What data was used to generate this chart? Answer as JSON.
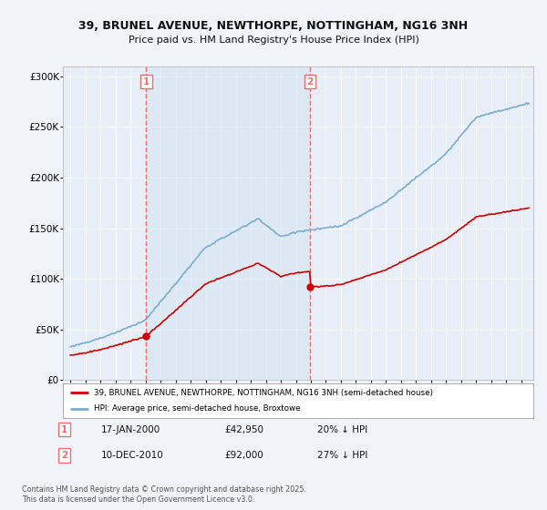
{
  "title_line1": "39, BRUNEL AVENUE, NEWTHORPE, NOTTINGHAM, NG16 3NH",
  "title_line2": "Price paid vs. HM Land Registry's House Price Index (HPI)",
  "legend_label1": "39, BRUNEL AVENUE, NEWTHORPE, NOTTINGHAM, NG16 3NH (semi-detached house)",
  "legend_label2": "HPI: Average price, semi-detached house, Broxtowe",
  "annotation1": {
    "num": "1",
    "date": "17-JAN-2000",
    "price": "£42,950",
    "pct": "20% ↓ HPI"
  },
  "annotation2": {
    "num": "2",
    "date": "10-DEC-2010",
    "price": "£92,000",
    "pct": "27% ↓ HPI"
  },
  "footnote": "Contains HM Land Registry data © Crown copyright and database right 2025.\nThis data is licensed under the Open Government Licence v3.0.",
  "price_color": "#cc0000",
  "hpi_color": "#7aadcf",
  "vline_color": "#e87070",
  "shade_color": "#d8e8f5",
  "bg_color": "#f0f4fa",
  "plot_bg": "#e8eef8",
  "grid_color": "#ffffff",
  "sale1_x": 2000.04,
  "sale1_y": 42950,
  "sale2_x": 2010.94,
  "sale2_y": 92000,
  "ylim": [
    0,
    310000
  ],
  "xlim": [
    1994.5,
    2025.8
  ]
}
